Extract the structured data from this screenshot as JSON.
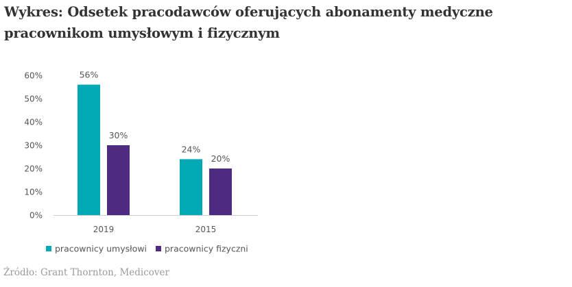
{
  "title": "Wykres: Odsetek pracodawców oferujących abonamenty medyczne pracownikom umysłowym i fizycznym",
  "source": "Źródło: Grant Thornton, Medicover",
  "colors": {
    "series_1": "#00a9b5",
    "series_2": "#4e2a80",
    "axis": "#cccccc",
    "text": "#555555"
  },
  "chart_data": {
    "type": "bar",
    "categories": [
      "2019",
      "2015"
    ],
    "series": [
      {
        "name": "pracownicy umysłowi",
        "values": [
          56,
          24
        ],
        "labels": [
          "56%",
          "24%"
        ]
      },
      {
        "name": "pracownicy fizyczni",
        "values": [
          30,
          20
        ],
        "labels": [
          "30%",
          "20%"
        ]
      }
    ],
    "yticks": [
      "0%",
      "10%",
      "20%",
      "30%",
      "40%",
      "50%",
      "60%"
    ],
    "ylim": [
      0,
      60
    ],
    "grid": false,
    "legend": "bottom-left"
  }
}
